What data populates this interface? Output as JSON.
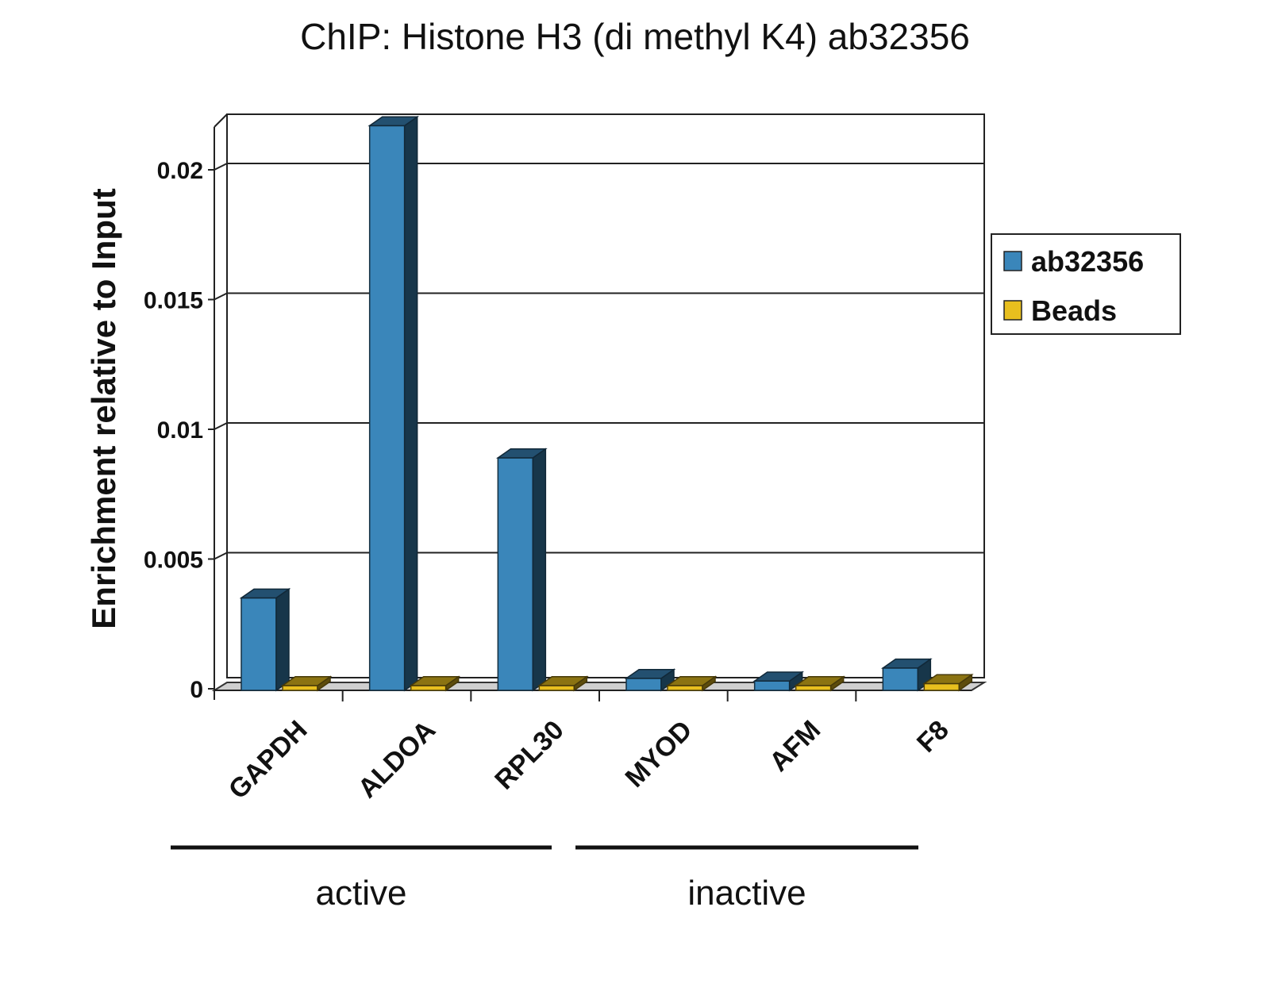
{
  "chart_data": {
    "type": "bar",
    "title": "ChIP: Histone H3 (di methyl K4) ab32356",
    "ylabel": "Enrichment relative to Input",
    "xlabel": "",
    "ylim": [
      0,
      0.022
    ],
    "yticks": [
      "0",
      "0.005",
      "0.01",
      "0.015",
      "0.02"
    ],
    "grid": true,
    "legend_position": "right",
    "categories": [
      "GAPDH",
      "ALDOA",
      "RPL30",
      "MYOD",
      "AFM",
      "F8"
    ],
    "series": [
      {
        "name": "ab32356",
        "color": "#3a86ba",
        "values": [
          0.0035,
          0.0217,
          0.0089,
          0.0004,
          0.0003,
          0.0008
        ]
      },
      {
        "name": "Beads",
        "color": "#e8bf1e",
        "values": [
          0.0001,
          0.0001,
          0.0001,
          0.0001,
          0.0001,
          0.0002
        ]
      }
    ],
    "groups": [
      {
        "label": "active",
        "categories": [
          "GAPDH",
          "ALDOA",
          "RPL30"
        ]
      },
      {
        "label": "inactive",
        "categories": [
          "MYOD",
          "AFM",
          "F8"
        ]
      }
    ]
  }
}
